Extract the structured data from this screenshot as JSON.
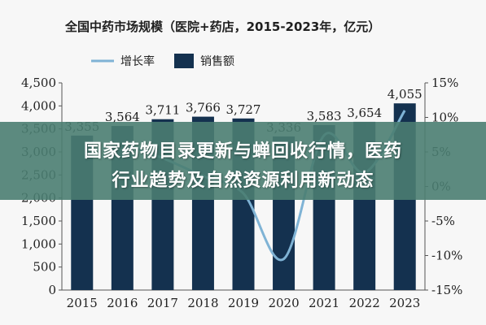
{
  "chart_data": {
    "type": "bar",
    "title": "全国中药市场规模（医院+药店，2015-2023年，亿元）",
    "categories": [
      "2015",
      "2016",
      "2017",
      "2018",
      "2019",
      "2020",
      "2021",
      "2022",
      "2023"
    ],
    "series": [
      {
        "name": "销售额",
        "type": "bar",
        "axis": "left",
        "values": [
          3355,
          3564,
          3711,
          3766,
          3727,
          3336,
          3583,
          3654,
          4055
        ]
      },
      {
        "name": "增长率",
        "type": "line",
        "axis": "right",
        "values": [
          null,
          6.2,
          4.1,
          1.5,
          -1.0,
          -10.5,
          7.4,
          2.0,
          11.0
        ]
      }
    ],
    "ylim_left": [
      0,
      4500
    ],
    "yticks_left": [
      "0",
      "500",
      "1,000",
      "1,500",
      "2,000",
      "2,500",
      "3,000",
      "3,500",
      "4,000",
      "4,500"
    ],
    "ylim_right": [
      -15,
      15
    ],
    "yticks_right": [
      "-15%",
      "-10%",
      "-5%",
      "0%",
      "5%",
      "10%",
      "15%"
    ],
    "data_labels": [
      "3,355",
      "3,564",
      "3,711",
      "3,766",
      "3,727",
      "3,336",
      "3,583",
      "3,654",
      "4,055"
    ],
    "legend_position": "top-left",
    "grid": false,
    "colors": {
      "bar": "#14314f",
      "line": "#7fb3d5"
    }
  },
  "banner": {
    "line1": "国家药物目录更新与蝉回收行情，医药",
    "line2": "行业趋势及自然资源利用新动态"
  }
}
